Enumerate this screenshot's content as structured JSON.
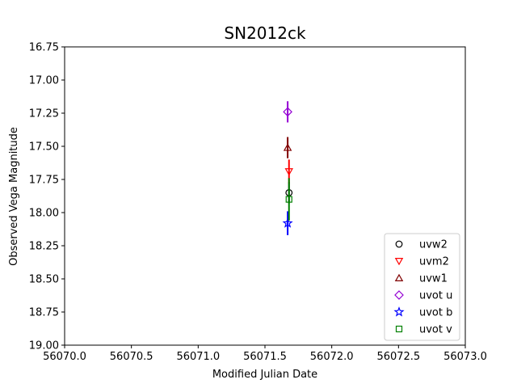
{
  "chart_data": {
    "type": "scatter",
    "title": "SN2012ck",
    "xlabel": "Modified Julian Date",
    "ylabel": "Observed Vega Magnitude",
    "xlim": [
      56070.0,
      56073.0
    ],
    "ylim": [
      16.75,
      19.0
    ],
    "y_inverted": true,
    "xticks": [
      "56070.0",
      "56070.5",
      "56071.0",
      "56071.5",
      "56072.0",
      "56072.5",
      "56073.0"
    ],
    "yticks": [
      "16.75",
      "17.00",
      "17.25",
      "17.50",
      "17.75",
      "18.00",
      "18.25",
      "18.50",
      "18.75",
      "19.00"
    ],
    "grid": false,
    "legend_position": "lower-right",
    "series": [
      {
        "name": "uvw2",
        "marker": "circle",
        "color": "#000000",
        "x": [
          56071.68
        ],
        "y": [
          17.85
        ],
        "yerr": [
          0.08
        ]
      },
      {
        "name": "uvm2",
        "marker": "triangle-down",
        "color": "#ff0000",
        "x": [
          56071.68
        ],
        "y": [
          17.69
        ],
        "yerr": [
          0.09
        ]
      },
      {
        "name": "uvw1",
        "marker": "triangle-up",
        "color": "#800000",
        "x": [
          56071.67
        ],
        "y": [
          17.51
        ],
        "yerr": [
          0.08
        ]
      },
      {
        "name": "uvot u",
        "marker": "diamond",
        "color": "#9400d3",
        "x": [
          56071.67
        ],
        "y": [
          17.24
        ],
        "yerr": [
          0.08
        ]
      },
      {
        "name": "uvot b",
        "marker": "star",
        "color": "#0000ff",
        "x": [
          56071.67
        ],
        "y": [
          18.08
        ],
        "yerr": [
          0.09
        ]
      },
      {
        "name": "uvot v",
        "marker": "square",
        "color": "#008000",
        "x": [
          56071.68
        ],
        "y": [
          17.9
        ],
        "yerr": [
          0.16
        ]
      }
    ]
  }
}
